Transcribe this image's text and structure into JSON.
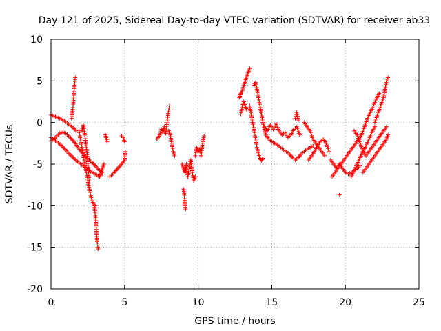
{
  "chart_data": {
    "type": "scatter",
    "title": "Day 121 of 2025, Sidereal Day-to-day VTEC variation (SDTVAR) for receiver ab33",
    "xlabel": "GPS time / hours",
    "ylabel": "SDTVAR / TECUs",
    "xlim": [
      0,
      25
    ],
    "ylim": [
      -20,
      10
    ],
    "xticks": [
      0,
      5,
      10,
      15,
      20,
      25
    ],
    "yticks": [
      -20,
      -15,
      -10,
      -5,
      0,
      5,
      10
    ],
    "xtick_labels": [
      "0",
      "5",
      "10",
      "15",
      "20",
      "25"
    ],
    "ytick_labels": [
      "-20",
      "-15",
      "-10",
      "-5",
      "0",
      "5",
      "10"
    ],
    "grid": true,
    "marker": "+",
    "marker_color": "#ff0000",
    "series": [
      {
        "name": "SDTVAR",
        "segments": [
          [
            [
              0.0,
              0.9
            ],
            [
              0.3,
              0.7
            ],
            [
              0.6,
              0.5
            ],
            [
              0.9,
              0.2
            ],
            [
              1.2,
              -0.2
            ],
            [
              1.5,
              -0.6
            ],
            [
              1.7,
              -1.0
            ]
          ],
          [
            [
              1.4,
              0.5
            ],
            [
              1.5,
              2.0
            ],
            [
              1.55,
              3.5
            ],
            [
              1.6,
              4.5
            ],
            [
              1.65,
              5.4
            ]
          ],
          [
            [
              0.0,
              -2.2
            ],
            [
              0.2,
              -2.0
            ],
            [
              0.4,
              -1.6
            ],
            [
              0.6,
              -1.3
            ],
            [
              0.8,
              -1.2
            ],
            [
              1.0,
              -1.3
            ],
            [
              1.2,
              -1.6
            ],
            [
              1.4,
              -2.0
            ],
            [
              1.6,
              -2.4
            ],
            [
              1.8,
              -2.9
            ],
            [
              2.0,
              -3.4
            ],
            [
              2.2,
              -3.8
            ],
            [
              2.4,
              -4.2
            ],
            [
              2.6,
              -4.5
            ],
            [
              2.8,
              -4.8
            ],
            [
              3.0,
              -5.2
            ],
            [
              3.2,
              -5.6
            ],
            [
              3.4,
              -5.9
            ],
            [
              3.5,
              -6.2
            ]
          ],
          [
            [
              0.0,
              -1.8
            ],
            [
              0.3,
              -2.2
            ],
            [
              0.6,
              -2.6
            ],
            [
              0.9,
              -3.1
            ],
            [
              1.2,
              -3.7
            ],
            [
              1.5,
              -4.2
            ],
            [
              1.8,
              -4.7
            ],
            [
              2.1,
              -5.1
            ],
            [
              2.4,
              -5.5
            ],
            [
              2.7,
              -5.9
            ],
            [
              3.0,
              -6.2
            ],
            [
              3.3,
              -6.5
            ]
          ],
          [
            [
              1.9,
              -1.0
            ],
            [
              2.0,
              -2.0
            ],
            [
              2.1,
              -3.0
            ],
            [
              2.2,
              -4.0
            ],
            [
              2.3,
              -5.0
            ],
            [
              2.4,
              -6.0
            ],
            [
              2.5,
              -7.0
            ],
            [
              2.6,
              -8.0
            ],
            [
              2.7,
              -8.8
            ],
            [
              2.8,
              -9.4
            ],
            [
              2.9,
              -9.8
            ],
            [
              3.0,
              -10.0
            ]
          ],
          [
            [
              2.1,
              -1.0
            ],
            [
              2.2,
              -0.3
            ],
            [
              2.3,
              -1.5
            ],
            [
              2.4,
              -3.0
            ],
            [
              2.5,
              -4.5
            ],
            [
              2.55,
              -6.0
            ],
            [
              2.6,
              -7.0
            ]
          ],
          [
            [
              2.95,
              -10.0
            ],
            [
              3.0,
              -11.0
            ],
            [
              3.05,
              -12.0
            ],
            [
              3.1,
              -13.5
            ],
            [
              3.15,
              -14.5
            ],
            [
              3.2,
              -15.2
            ]
          ],
          [
            [
              3.3,
              -6.5
            ],
            [
              3.4,
              -6.0
            ],
            [
              3.5,
              -5.5
            ],
            [
              3.6,
              -5.0
            ]
          ],
          [
            [
              3.7,
              -1.5
            ],
            [
              3.75,
              -1.8
            ],
            [
              3.8,
              -2.3
            ]
          ],
          [
            [
              4.0,
              -6.5
            ],
            [
              4.2,
              -6.2
            ],
            [
              4.4,
              -5.8
            ],
            [
              4.6,
              -5.4
            ],
            [
              4.8,
              -5.0
            ],
            [
              5.0,
              -4.5
            ],
            [
              5.05,
              -3.5
            ]
          ],
          [
            [
              4.8,
              -1.6
            ],
            [
              4.9,
              -1.8
            ],
            [
              5.0,
              -2.3
            ]
          ],
          [
            [
              7.2,
              -2.0
            ],
            [
              7.4,
              -1.5
            ],
            [
              7.5,
              -0.8
            ],
            [
              7.6,
              -1.2
            ],
            [
              7.7,
              -0.5
            ],
            [
              7.8,
              -1.3
            ],
            [
              7.9,
              0.2
            ],
            [
              8.0,
              1.5
            ],
            [
              8.05,
              2.0
            ]
          ],
          [
            [
              8.0,
              -1.0
            ],
            [
              8.1,
              -1.5
            ],
            [
              8.2,
              -2.5
            ],
            [
              8.3,
              -3.5
            ],
            [
              8.4,
              -4.0
            ]
          ],
          [
            [
              8.9,
              -5.0
            ],
            [
              9.0,
              -5.5
            ],
            [
              9.1,
              -6.0
            ],
            [
              9.2,
              -5.0
            ],
            [
              9.3,
              -6.5
            ],
            [
              9.4,
              -5.5
            ],
            [
              9.5,
              -4.5
            ],
            [
              9.6,
              -6.0
            ],
            [
              9.7,
              -7.0
            ],
            [
              9.8,
              -6.5
            ]
          ],
          [
            [
              9.0,
              -8.0
            ],
            [
              9.05,
              -8.5
            ],
            [
              9.1,
              -9.8
            ],
            [
              9.15,
              -10.4
            ]
          ],
          [
            [
              9.8,
              -4.0
            ],
            [
              9.9,
              -3.0
            ],
            [
              10.0,
              -3.5
            ],
            [
              10.1,
              -3.2
            ],
            [
              10.2,
              -4.0
            ],
            [
              10.3,
              -2.5
            ],
            [
              10.4,
              -1.6
            ]
          ],
          [
            [
              12.8,
              3.0
            ],
            [
              12.9,
              3.5
            ],
            [
              13.0,
              3.8
            ],
            [
              13.1,
              4.5
            ],
            [
              13.2,
              5.0
            ],
            [
              13.3,
              5.5
            ],
            [
              13.4,
              6.0
            ],
            [
              13.5,
              6.5
            ]
          ],
          [
            [
              12.9,
              1.0
            ],
            [
              13.0,
              2.0
            ],
            [
              13.1,
              2.5
            ],
            [
              13.2,
              2.0
            ],
            [
              13.3,
              1.5
            ]
          ],
          [
            [
              13.5,
              2.0
            ],
            [
              13.6,
              1.0
            ],
            [
              13.7,
              0.0
            ],
            [
              13.8,
              -1.0
            ],
            [
              13.9,
              -2.0
            ],
            [
              14.0,
              -3.0
            ],
            [
              14.1,
              -3.8
            ],
            [
              14.2,
              -4.3
            ],
            [
              14.3,
              -4.6
            ],
            [
              14.4,
              -4.3
            ]
          ],
          [
            [
              13.8,
              4.5
            ],
            [
              13.9,
              4.8
            ],
            [
              14.0,
              4.0
            ],
            [
              14.1,
              3.0
            ],
            [
              14.2,
              2.0
            ],
            [
              14.3,
              1.0
            ],
            [
              14.4,
              0.0
            ],
            [
              14.5,
              -0.8
            ],
            [
              14.6,
              -1.5
            ],
            [
              14.8,
              -2.0
            ],
            [
              15.0,
              -2.3
            ],
            [
              15.2,
              -2.5
            ],
            [
              15.4,
              -2.7
            ],
            [
              15.6,
              -3.0
            ],
            [
              15.8,
              -3.3
            ],
            [
              16.0,
              -3.5
            ],
            [
              16.2,
              -3.8
            ],
            [
              16.4,
              -4.2
            ],
            [
              16.6,
              -4.5
            ],
            [
              16.8,
              -4.2
            ],
            [
              17.0,
              -3.8
            ],
            [
              17.2,
              -3.5
            ],
            [
              17.4,
              -3.2
            ],
            [
              17.6,
              -3.0
            ],
            [
              17.8,
              -2.8
            ]
          ],
          [
            [
              14.5,
              -0.5
            ],
            [
              14.7,
              -1.0
            ],
            [
              14.9,
              -0.3
            ],
            [
              15.1,
              -0.8
            ],
            [
              15.3,
              -0.2
            ],
            [
              15.5,
              -1.0
            ],
            [
              15.7,
              -1.5
            ],
            [
              15.9,
              -1.2
            ],
            [
              16.1,
              -1.8
            ],
            [
              16.3,
              -1.5
            ],
            [
              16.5,
              -0.8
            ],
            [
              16.7,
              -0.5
            ],
            [
              16.9,
              -1.5
            ]
          ],
          [
            [
              16.6,
              0.5
            ],
            [
              16.7,
              1.2
            ],
            [
              16.8,
              0.3
            ]
          ],
          [
            [
              17.2,
              0.0
            ],
            [
              17.4,
              -0.5
            ],
            [
              17.6,
              -1.0
            ],
            [
              17.8,
              -2.0
            ],
            [
              18.0,
              -2.5
            ],
            [
              18.2,
              -3.0
            ],
            [
              18.4,
              -3.5
            ],
            [
              18.6,
              -4.0
            ]
          ],
          [
            [
              17.5,
              -4.5
            ],
            [
              17.7,
              -4.0
            ],
            [
              17.9,
              -3.5
            ],
            [
              18.1,
              -2.8
            ],
            [
              18.3,
              -2.3
            ],
            [
              18.5,
              -2.0
            ],
            [
              18.7,
              -2.5
            ],
            [
              18.9,
              -3.5
            ]
          ],
          [
            [
              19.0,
              -4.5
            ],
            [
              19.2,
              -5.0
            ],
            [
              19.4,
              -5.5
            ],
            [
              19.6,
              -5.0
            ],
            [
              19.8,
              -5.5
            ],
            [
              20.0,
              -6.0
            ],
            [
              20.2,
              -6.2
            ],
            [
              20.4,
              -6.0
            ],
            [
              20.6,
              -5.8
            ],
            [
              20.8,
              -5.5
            ],
            [
              21.0,
              -5.2
            ]
          ],
          [
            [
              19.1,
              -6.5
            ],
            [
              19.3,
              -6.0
            ],
            [
              19.5,
              -5.5
            ],
            [
              19.7,
              -5.0
            ],
            [
              19.9,
              -4.5
            ],
            [
              20.1,
              -4.0
            ],
            [
              20.3,
              -3.5
            ],
            [
              20.5,
              -3.0
            ],
            [
              20.7,
              -2.5
            ],
            [
              20.9,
              -2.0
            ],
            [
              21.1,
              -1.5
            ],
            [
              21.3,
              -0.5
            ],
            [
              21.5,
              0.5
            ],
            [
              21.7,
              1.2
            ],
            [
              21.9,
              2.0
            ],
            [
              22.1,
              2.8
            ],
            [
              22.3,
              3.5
            ]
          ],
          [
            [
              20.4,
              -6.5
            ],
            [
              20.6,
              -5.8
            ],
            [
              20.8,
              -5.0
            ],
            [
              21.0,
              -4.2
            ],
            [
              21.2,
              -3.5
            ],
            [
              21.4,
              -2.8
            ],
            [
              21.6,
              -2.0
            ],
            [
              21.8,
              -1.2
            ],
            [
              22.0,
              -0.5
            ]
          ],
          [
            [
              20.6,
              -1.0
            ],
            [
              20.8,
              -1.5
            ],
            [
              21.0,
              -2.5
            ],
            [
              21.2,
              -3.5
            ],
            [
              21.4,
              -4.0
            ],
            [
              21.6,
              -3.5
            ],
            [
              21.8,
              -3.0
            ],
            [
              22.0,
              -2.5
            ],
            [
              22.2,
              -2.0
            ],
            [
              22.4,
              -1.5
            ],
            [
              22.6,
              -1.0
            ],
            [
              22.8,
              -0.5
            ]
          ],
          [
            [
              21.2,
              -6.0
            ],
            [
              21.4,
              -5.5
            ],
            [
              21.6,
              -5.0
            ],
            [
              21.8,
              -4.5
            ],
            [
              22.0,
              -4.0
            ],
            [
              22.2,
              -3.5
            ],
            [
              22.4,
              -3.0
            ],
            [
              22.6,
              -2.5
            ],
            [
              22.8,
              -2.0
            ],
            [
              22.9,
              -1.5
            ]
          ],
          [
            [
              22.0,
              0.0
            ],
            [
              22.2,
              1.0
            ],
            [
              22.4,
              2.0
            ],
            [
              22.6,
              3.0
            ],
            [
              22.7,
              4.0
            ],
            [
              22.8,
              5.0
            ],
            [
              22.9,
              5.4
            ]
          ],
          [
            [
              19.6,
              -8.7
            ]
          ]
        ]
      }
    ]
  }
}
